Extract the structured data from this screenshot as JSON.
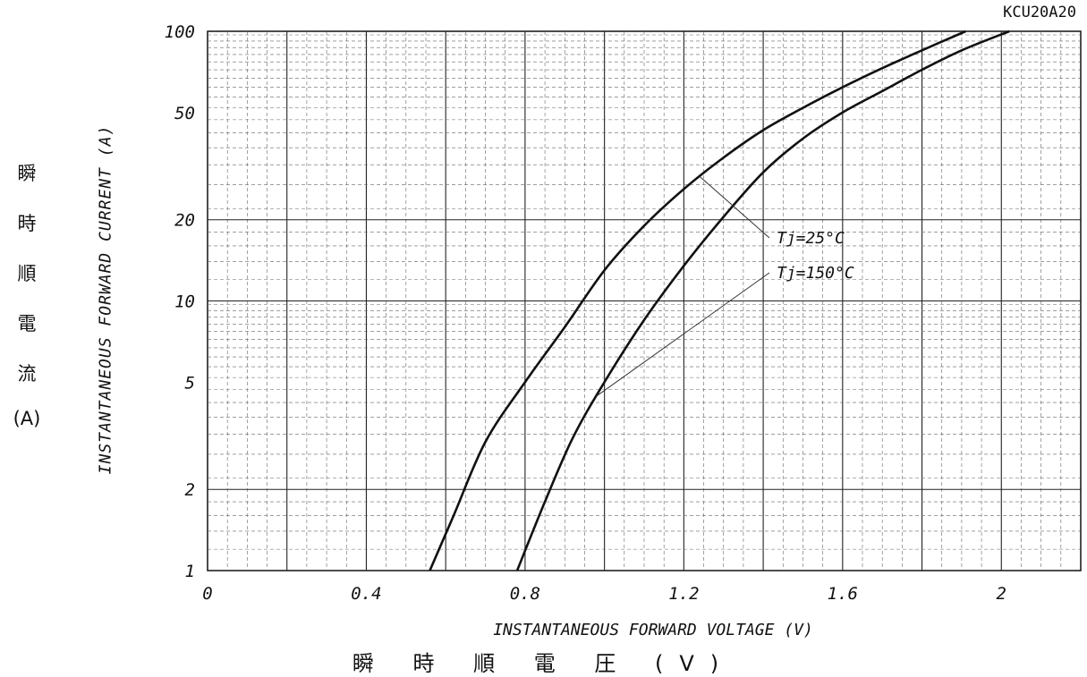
{
  "model": "KCU20A20",
  "chart_data": {
    "type": "line",
    "title": "",
    "xlabel": "INSTANTANEOUS FORWARD VOLTAGE (V)",
    "ylabel": "INSTANTANEOUS FORWARD CURRENT (A)",
    "xlabel_jp": "瞬 時 順 電 圧 (V)",
    "ylabel_jp": [
      "瞬",
      "時",
      "順",
      "電",
      "流",
      "(A)"
    ],
    "xlim": [
      0,
      2.2
    ],
    "ylim": [
      1,
      100
    ],
    "yscale": "log",
    "grid": true,
    "x_ticks": [
      0,
      0.4,
      0.8,
      1.2,
      1.6,
      2
    ],
    "x_tick_labels": [
      "0",
      "0.4",
      "0.8",
      "1.2",
      "1.6",
      "2"
    ],
    "y_ticks": [
      1,
      2,
      5,
      10,
      20,
      50,
      100
    ],
    "y_tick_labels": [
      "1",
      "2",
      "5",
      "10",
      "20",
      "50",
      "100"
    ],
    "series": [
      {
        "name": "Tj=25°C",
        "x": [
          0.56,
          0.62,
          0.7,
          0.8,
          0.9,
          1.0,
          1.1,
          1.2,
          1.3,
          1.4,
          1.5,
          1.6,
          1.7,
          1.8,
          1.91
        ],
        "y": [
          1,
          1.6,
          3,
          5,
          8,
          13,
          19,
          26,
          34,
          43,
          52,
          62,
          73,
          85,
          100
        ]
      },
      {
        "name": "Tj=150°C",
        "x": [
          0.78,
          0.85,
          0.92,
          1.0,
          1.1,
          1.2,
          1.3,
          1.4,
          1.5,
          1.6,
          1.7,
          1.8,
          1.9,
          2.02
        ],
        "y": [
          1,
          1.8,
          3.1,
          5,
          8.5,
          13.5,
          20.5,
          30,
          40,
          50,
          60,
          72,
          85,
          100
        ]
      }
    ],
    "annotations": [
      {
        "text": "Tj=25°C",
        "series": 0,
        "x": 1.24
      },
      {
        "text": "Tj=150°C",
        "series": 1,
        "x": 0.98
      }
    ]
  }
}
